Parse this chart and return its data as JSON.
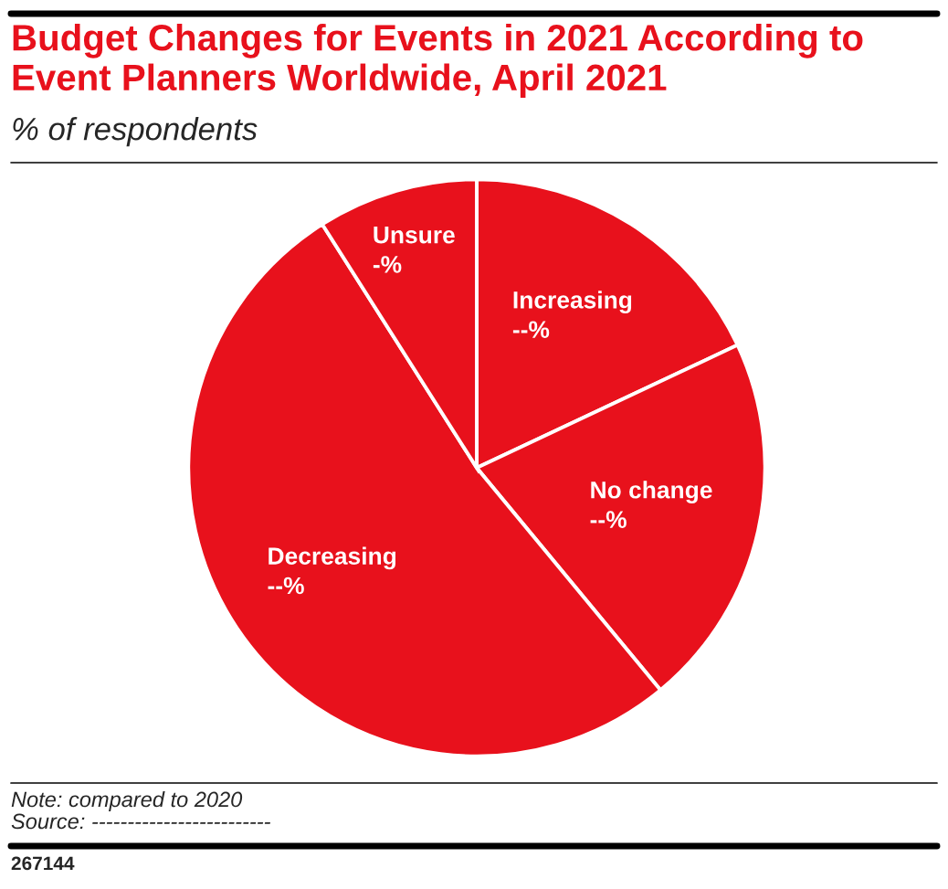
{
  "chart_data": {
    "type": "pie",
    "title": "Budget Changes for Events in 2021 According to Event Planners Worldwide, April 2021",
    "subtitle": "% of respondents",
    "categories": [
      "Increasing",
      "No change",
      "Decreasing",
      "Unsure"
    ],
    "values": [
      18,
      21,
      52,
      9
    ],
    "value_labels": [
      "--%",
      "--%",
      "--%",
      "-%"
    ],
    "colors": [
      "#e8111c",
      "#e8111c",
      "#e8111c",
      "#e8111c"
    ],
    "annotations": [
      "Note: compared to 2020",
      "Source: -------------------------",
      "267144"
    ]
  }
}
